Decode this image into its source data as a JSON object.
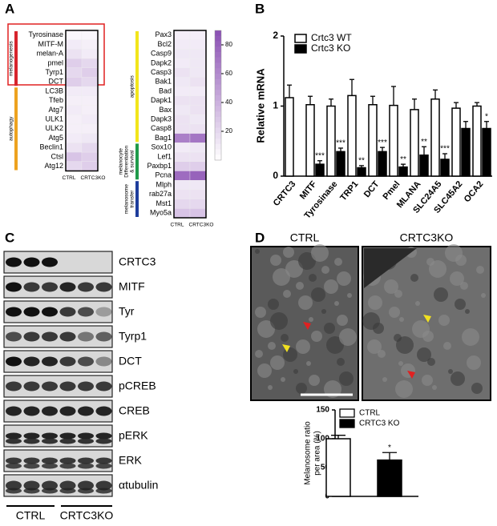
{
  "panels": {
    "a": "A",
    "b": "B",
    "c": "C",
    "d": "D"
  },
  "chart_data": [
    {
      "type": "heatmap",
      "categories": [
        "Tyrosinase",
        "MITF-M",
        "melan-A",
        "pmel",
        "Tyrp1",
        "DCT",
        "LC3B",
        "Tfeb",
        "Atg7",
        "ULK1",
        "ULK2",
        "Atg5",
        "Beclin1",
        "Ctsl",
        "Atg12"
      ],
      "columns": [
        "CTRL",
        "CRTC3KO"
      ],
      "values": [
        [
          4,
          4
        ],
        [
          10,
          8
        ],
        [
          15,
          10
        ],
        [
          25,
          20
        ],
        [
          20,
          25
        ],
        [
          25,
          20
        ],
        [
          10,
          10
        ],
        [
          8,
          8
        ],
        [
          10,
          8
        ],
        [
          8,
          10
        ],
        [
          8,
          8
        ],
        [
          10,
          12
        ],
        [
          15,
          20
        ],
        [
          30,
          25
        ],
        [
          20,
          25
        ]
      ],
      "zlim": [
        0,
        90
      ],
      "colors": [
        "#ffffff",
        "#8a4fb3"
      ],
      "groups": [
        {
          "lines": [
            "melanogenesis"
          ],
          "start": 0,
          "end": 5,
          "color": "#d7242d"
        },
        {
          "lines": [
            "autophagy"
          ],
          "start": 6,
          "end": 14,
          "color": "#eda21f"
        }
      ]
    },
    {
      "type": "heatmap",
      "categories": [
        "Pax3",
        "Bcl2",
        "Casp9",
        "Dapk2",
        "Casp3",
        "Bak1",
        "Bad",
        "Dapk1",
        "Bax",
        "Dapk3",
        "Casp8",
        "Bag1",
        "Sox10",
        "Lef1",
        "Paxbp1",
        "Pcna",
        "Mlph",
        "rab27a",
        "Mst1",
        "Myo5a"
      ],
      "columns": [
        "CTRL",
        "CRTC3KO"
      ],
      "values": [
        [
          8,
          8
        ],
        [
          10,
          10
        ],
        [
          12,
          12
        ],
        [
          10,
          12
        ],
        [
          15,
          12
        ],
        [
          12,
          15
        ],
        [
          10,
          10
        ],
        [
          15,
          15
        ],
        [
          12,
          15
        ],
        [
          15,
          12
        ],
        [
          15,
          15
        ],
        [
          65,
          70
        ],
        [
          10,
          12
        ],
        [
          15,
          15
        ],
        [
          25,
          25
        ],
        [
          75,
          80
        ],
        [
          12,
          12
        ],
        [
          15,
          15
        ],
        [
          20,
          20
        ],
        [
          30,
          30
        ]
      ],
      "zlim": [
        0,
        90
      ],
      "zticks": [
        20,
        40,
        60,
        80
      ],
      "colors": [
        "#ffffff",
        "#8a4fb3"
      ],
      "groups": [
        {
          "lines": [
            "apoptosis"
          ],
          "start": 0,
          "end": 11,
          "color": "#f2e51b"
        },
        {
          "lines": [
            "melanocyte",
            "Differentiation",
            "& survival"
          ],
          "start": 12,
          "end": 15,
          "color": "#1f9a4a"
        },
        {
          "lines": [
            "melanosome",
            "transfer"
          ],
          "start": 16,
          "end": 19,
          "color": "#1e3d9c"
        }
      ]
    },
    {
      "type": "bar",
      "ylabel": "Relative mRNA",
      "ylim": [
        0,
        2
      ],
      "yticks": [
        0,
        1,
        2
      ],
      "categories": [
        "CRTC3",
        "MITF",
        "Tyrosinase",
        "TRP1",
        "DCT",
        "Pmel",
        "MLANA",
        "SLC24A5",
        "SLC45A2",
        "OCA2"
      ],
      "series": [
        {
          "name": "Crtc3 WT",
          "color": "#ffffff",
          "values": [
            1.12,
            1.02,
            1.0,
            1.15,
            1.02,
            1.01,
            0.95,
            1.1,
            0.97,
            1.0
          ],
          "errors": [
            0.18,
            0.12,
            0.1,
            0.23,
            0.12,
            0.27,
            0.15,
            0.13,
            0.08,
            0.05
          ]
        },
        {
          "name": "Crtc3 KO",
          "color": "#000000",
          "values": [
            null,
            0.17,
            0.35,
            0.12,
            0.35,
            0.13,
            0.3,
            0.24,
            0.68,
            0.68
          ],
          "errors": [
            null,
            0.05,
            0.05,
            0.03,
            0.06,
            0.04,
            0.12,
            0.08,
            0.1,
            0.1
          ],
          "annotations": [
            null,
            "***",
            "***",
            "**",
            "***",
            "**",
            "**",
            "***",
            null,
            "*"
          ]
        }
      ]
    },
    {
      "type": "bar",
      "ylabel": [
        "Melanosome ratio",
        "per area (%)"
      ],
      "ylim": [
        0,
        150
      ],
      "yticks": [
        0,
        50,
        100,
        150
      ],
      "categories": [
        "CTRL",
        "CRTC3 KO"
      ],
      "series": [
        {
          "name": "CTRL",
          "color": "#ffffff",
          "values": [
            100,
            null
          ],
          "errors": [
            6,
            null
          ]
        },
        {
          "name": "CRTC3 KO",
          "color": "#000000",
          "values": [
            null,
            63
          ],
          "errors": [
            null,
            13
          ],
          "annotations": [
            null,
            "*"
          ]
        }
      ]
    }
  ],
  "blots": {
    "labels": [
      "CRTC3",
      "MITF",
      "Tyr",
      "Tyrp1",
      "DCT",
      "pCREB",
      "CREB",
      "pERK",
      "ERK",
      "αtubulin"
    ],
    "groups": [
      "CTRL",
      "CRTC3KO"
    ]
  },
  "micrographs": {
    "labels": [
      "CTRL",
      "CRTC3KO"
    ]
  }
}
